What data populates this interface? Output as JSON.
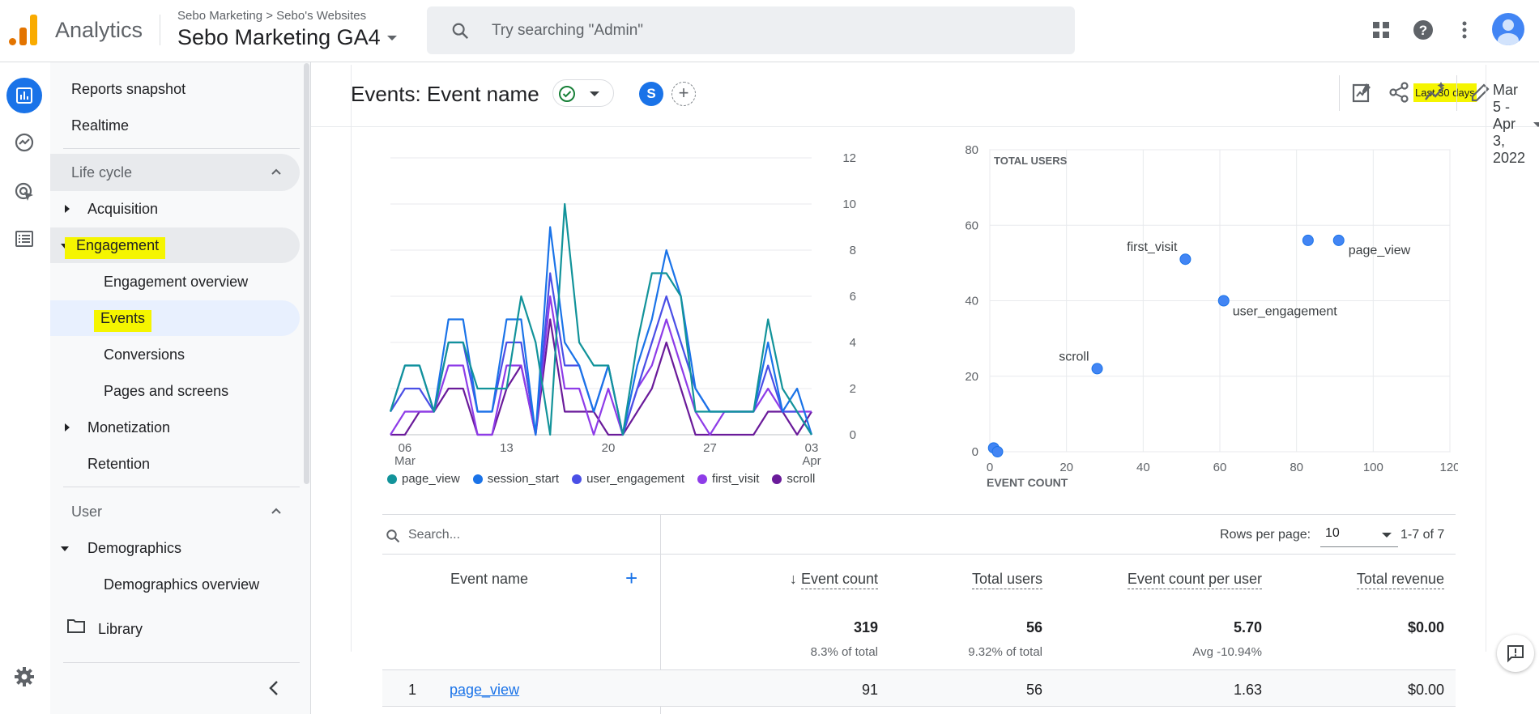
{
  "app": {
    "name": "Analytics"
  },
  "breadcrumb": {
    "account": "Sebo Marketing",
    "separator": ">",
    "property_group": "Sebo's Websites"
  },
  "property": {
    "name": "Sebo Marketing GA4"
  },
  "search": {
    "placeholder": "Try searching \"Admin\""
  },
  "sidebar": {
    "reports_snapshot": "Reports snapshot",
    "realtime": "Realtime",
    "lifecycle": "Life cycle",
    "acquisition": "Acquisition",
    "engagement": "Engagement",
    "engagement_overview": "Engagement overview",
    "events": "Events",
    "conversions": "Conversions",
    "pages_and_screens": "Pages and screens",
    "monetization": "Monetization",
    "retention": "Retention",
    "user": "User",
    "demographics": "Demographics",
    "demographics_overview": "Demographics overview",
    "library": "Library"
  },
  "header": {
    "title": "Events: Event name",
    "comparison_avatar": "S",
    "add_comparison": "+",
    "date_label": "Last 30 days",
    "date_range": "Mar 5 - Apr 3, 2022"
  },
  "chart_data": [
    {
      "type": "line",
      "x_tick_labels": [
        "06\nMar",
        "13",
        "20",
        "27",
        "03\nApr"
      ],
      "x": [
        "Mar 5",
        "Mar 6",
        "Mar 7",
        "Mar 8",
        "Mar 9",
        "Mar 10",
        "Mar 11",
        "Mar 12",
        "Mar 13",
        "Mar 14",
        "Mar 15",
        "Mar 16",
        "Mar 17",
        "Mar 18",
        "Mar 19",
        "Mar 20",
        "Mar 21",
        "Mar 22",
        "Mar 23",
        "Mar 24",
        "Mar 25",
        "Mar 26",
        "Mar 27",
        "Mar 28",
        "Mar 29",
        "Mar 30",
        "Mar 31",
        "Apr 1",
        "Apr 2",
        "Apr 3"
      ],
      "ylim": [
        0,
        12
      ],
      "y_ticks": [
        0,
        2,
        4,
        6,
        8,
        10,
        12
      ],
      "series": [
        {
          "name": "page_view",
          "color": "#12939a",
          "values": [
            1,
            3,
            3,
            1,
            4,
            4,
            2,
            2,
            2,
            6,
            4,
            0,
            10,
            4,
            3,
            3,
            0,
            4,
            7,
            7,
            6,
            1,
            1,
            1,
            1,
            1,
            5,
            2,
            1,
            0
          ]
        },
        {
          "name": "session_start",
          "color": "#1a73e8",
          "values": [
            1,
            3,
            3,
            1,
            5,
            5,
            1,
            1,
            5,
            5,
            0,
            9,
            4,
            3,
            1,
            3,
            0,
            3,
            5,
            8,
            6,
            2,
            1,
            1,
            1,
            1,
            4,
            1,
            2,
            0
          ]
        },
        {
          "name": "user_engagement",
          "color": "#4a4fe6",
          "values": [
            1,
            2,
            2,
            1,
            4,
            4,
            1,
            1,
            4,
            4,
            0,
            7,
            3,
            3,
            1,
            3,
            0,
            2,
            4,
            6,
            4,
            2,
            1,
            1,
            1,
            1,
            3,
            1,
            1,
            0
          ]
        },
        {
          "name": "first_visit",
          "color": "#8e3ce8",
          "values": [
            0,
            1,
            1,
            1,
            3,
            3,
            0,
            0,
            3,
            3,
            0,
            6,
            2,
            2,
            0,
            2,
            0,
            2,
            3,
            5,
            3,
            1,
            0,
            1,
            1,
            1,
            2,
            1,
            1,
            1
          ]
        },
        {
          "name": "scroll",
          "color": "#6a1b9a",
          "values": [
            0,
            0,
            1,
            1,
            2,
            2,
            0,
            0,
            2,
            3,
            0,
            5,
            1,
            1,
            1,
            0,
            0,
            1,
            2,
            4,
            2,
            0,
            0,
            0,
            0,
            0,
            1,
            1,
            0,
            1
          ]
        }
      ]
    },
    {
      "type": "scatter",
      "xlabel": "EVENT COUNT",
      "ylabel": "TOTAL USERS",
      "xlim": [
        0,
        120
      ],
      "ylim": [
        0,
        80
      ],
      "x_ticks": [
        0,
        20,
        40,
        60,
        80,
        100,
        120
      ],
      "y_ticks": [
        0,
        20,
        40,
        60,
        80
      ],
      "points": [
        {
          "label": "page_view",
          "x": 91,
          "y": 56
        },
        {
          "label": "",
          "x": 83,
          "y": 56
        },
        {
          "label": "first_visit",
          "x": 51,
          "y": 51
        },
        {
          "label": "user_engagement",
          "x": 61,
          "y": 40
        },
        {
          "label": "scroll",
          "x": 28,
          "y": 22
        },
        {
          "label": "",
          "x": 1,
          "y": 1
        },
        {
          "label": "",
          "x": 2,
          "y": 0
        }
      ]
    }
  ],
  "table": {
    "search_placeholder": "Search...",
    "rows_per_page_label": "Rows per page:",
    "rows_per_page": "10",
    "range": "1-7 of 7",
    "columns": {
      "event_name": "Event name",
      "add": "+",
      "event_count": "Event count",
      "total_users": "Total users",
      "event_count_per_user": "Event count per user",
      "total_revenue": "Total revenue"
    },
    "totals": {
      "event_count": "319",
      "event_count_sub": "8.3% of total",
      "total_users": "56",
      "total_users_sub": "9.32% of total",
      "per_user": "5.70",
      "per_user_sub": "Avg -10.94%",
      "revenue": "$0.00"
    },
    "rows": [
      {
        "index": "1",
        "event_name": "page_view",
        "event_count": "91",
        "total_users": "56",
        "per_user": "1.63",
        "revenue": "$0.00"
      }
    ]
  },
  "colors": {
    "accent": "#1a73e8",
    "highlight": "#f5f500"
  }
}
